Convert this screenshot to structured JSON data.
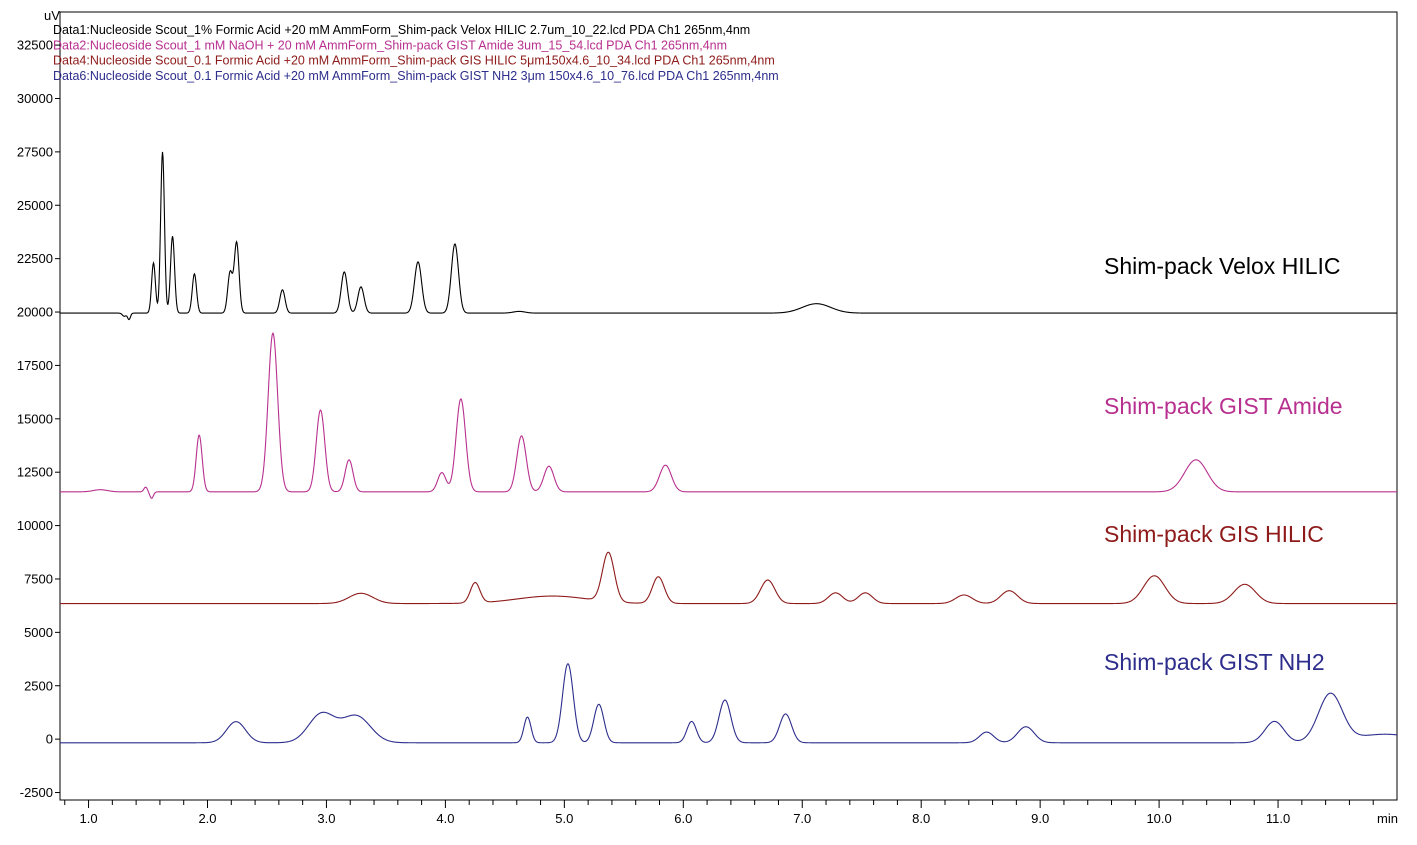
{
  "chart_data": {
    "type": "line",
    "title": "",
    "ylabel": "uV",
    "xlabel": "min",
    "xlim": [
      0.76,
      12.0
    ],
    "ylim": [
      -2850,
      34050
    ],
    "x_ticks": [
      1.0,
      2.0,
      3.0,
      4.0,
      5.0,
      6.0,
      7.0,
      8.0,
      9.0,
      10.0,
      11.0
    ],
    "x_tick_labels": [
      "1.0",
      "2.0",
      "3.0",
      "4.0",
      "5.0",
      "6.0",
      "7.0",
      "8.0",
      "9.0",
      "10.0",
      "11.0"
    ],
    "y_ticks": [
      -2500,
      0,
      2500,
      5000,
      7500,
      10000,
      12500,
      15000,
      17500,
      20000,
      22500,
      25000,
      27500,
      30000,
      32500
    ],
    "y_tick_labels": [
      "-2500",
      "0",
      "2500",
      "5000",
      "7500",
      "10000",
      "12500",
      "15000",
      "17500",
      "20000",
      "22500",
      "25000",
      "27500",
      "30000",
      "32500"
    ],
    "grid": false,
    "legend_placement": "top-left",
    "series": [
      {
        "name": "Data1:Nucleoside Scout_1% Formic Acid +20 mM AmmForm_Shim-pack Velox HILIC 2.7um_10_22.lcd PDA Ch1 265nm,4nm",
        "label": "Shim-pack Velox HILIC",
        "color": "#000000",
        "baseline": 19950,
        "peaks": [
          [
            1.3,
            -150,
            0.015
          ],
          [
            1.34,
            -300,
            0.012
          ],
          [
            1.546,
            2350,
            0.016
          ],
          [
            1.622,
            7550,
            0.016
          ],
          [
            1.706,
            3600,
            0.017
          ],
          [
            1.89,
            1840,
            0.018
          ],
          [
            2.19,
            1900,
            0.02
          ],
          [
            2.245,
            3300,
            0.02
          ],
          [
            2.63,
            1090,
            0.022
          ],
          [
            3.15,
            1930,
            0.026
          ],
          [
            3.29,
            1230,
            0.026
          ],
          [
            3.77,
            2400,
            0.03
          ],
          [
            4.08,
            3240,
            0.03
          ],
          [
            4.62,
            80,
            0.05
          ],
          [
            7.12,
            440,
            0.12
          ]
        ]
      },
      {
        "name": "Data2:Nucleoside Scout_1 mM NaOH + 20 mM AmmForm_Shim-pack GIST Amide 3um_15_54.lcd PDA Ch1 265nm,4nm",
        "label": "Shim-pack GIST Amide",
        "color": "#b8308f",
        "baseline": 11580,
        "peaks": [
          [
            1.1,
            100,
            0.06
          ],
          [
            1.48,
            220,
            0.015
          ],
          [
            1.53,
            -300,
            0.015
          ],
          [
            1.93,
            2660,
            0.025
          ],
          [
            2.55,
            7430,
            0.04
          ],
          [
            2.95,
            3830,
            0.036
          ],
          [
            3.19,
            1500,
            0.033
          ],
          [
            3.97,
            900,
            0.035
          ],
          [
            4.13,
            4350,
            0.04
          ],
          [
            4.64,
            2620,
            0.04
          ],
          [
            4.87,
            1200,
            0.042
          ],
          [
            5.85,
            1250,
            0.05
          ],
          [
            10.31,
            1500,
            0.095
          ]
        ]
      },
      {
        "name": "Data4:Nucleoside Scout_0.1 Formic Acid +20 mM AmmForm_Shim-pack GIS HILIC 5μm150x4.6_10_34.lcd PDA Ch1 265nm,4nm",
        "label": "Shim-pack GIS HILIC",
        "color": "#8e1a1a",
        "baseline": 6350,
        "peaks": [
          [
            3.29,
            480,
            0.1
          ],
          [
            4.25,
            950,
            0.04
          ],
          [
            4.9,
            350,
            0.3
          ],
          [
            5.37,
            2300,
            0.05
          ],
          [
            5.79,
            1250,
            0.05
          ],
          [
            6.71,
            1100,
            0.06
          ],
          [
            7.28,
            500,
            0.06
          ],
          [
            7.53,
            500,
            0.06
          ],
          [
            8.36,
            400,
            0.07
          ],
          [
            8.74,
            600,
            0.07
          ],
          [
            9.96,
            1300,
            0.09
          ],
          [
            10.72,
            900,
            0.09
          ]
        ]
      },
      {
        "name": "Data6:Nucleoside Scout_0.1 Formic Acid +20 mM AmmForm_Shim-pack GIST NH2 3μm 150x4.6_10_76.lcd PDA Ch1 265nm,4nm",
        "label": "Shim-pack GIST NH2",
        "color": "#2d2d8c",
        "baseline": -170,
        "peaks": [
          [
            2.24,
            990,
            0.08
          ],
          [
            2.96,
            1350,
            0.11
          ],
          [
            3.25,
            1250,
            0.12
          ],
          [
            4.69,
            1200,
            0.03
          ],
          [
            5.03,
            3700,
            0.045
          ],
          [
            5.29,
            1800,
            0.042
          ],
          [
            6.07,
            1000,
            0.04
          ],
          [
            6.35,
            2000,
            0.05
          ],
          [
            6.86,
            1350,
            0.05
          ],
          [
            8.55,
            500,
            0.06
          ],
          [
            8.88,
            750,
            0.07
          ],
          [
            10.97,
            1000,
            0.08
          ],
          [
            11.44,
            2250,
            0.1
          ],
          [
            11.9,
            400,
            0.25
          ]
        ]
      }
    ]
  }
}
